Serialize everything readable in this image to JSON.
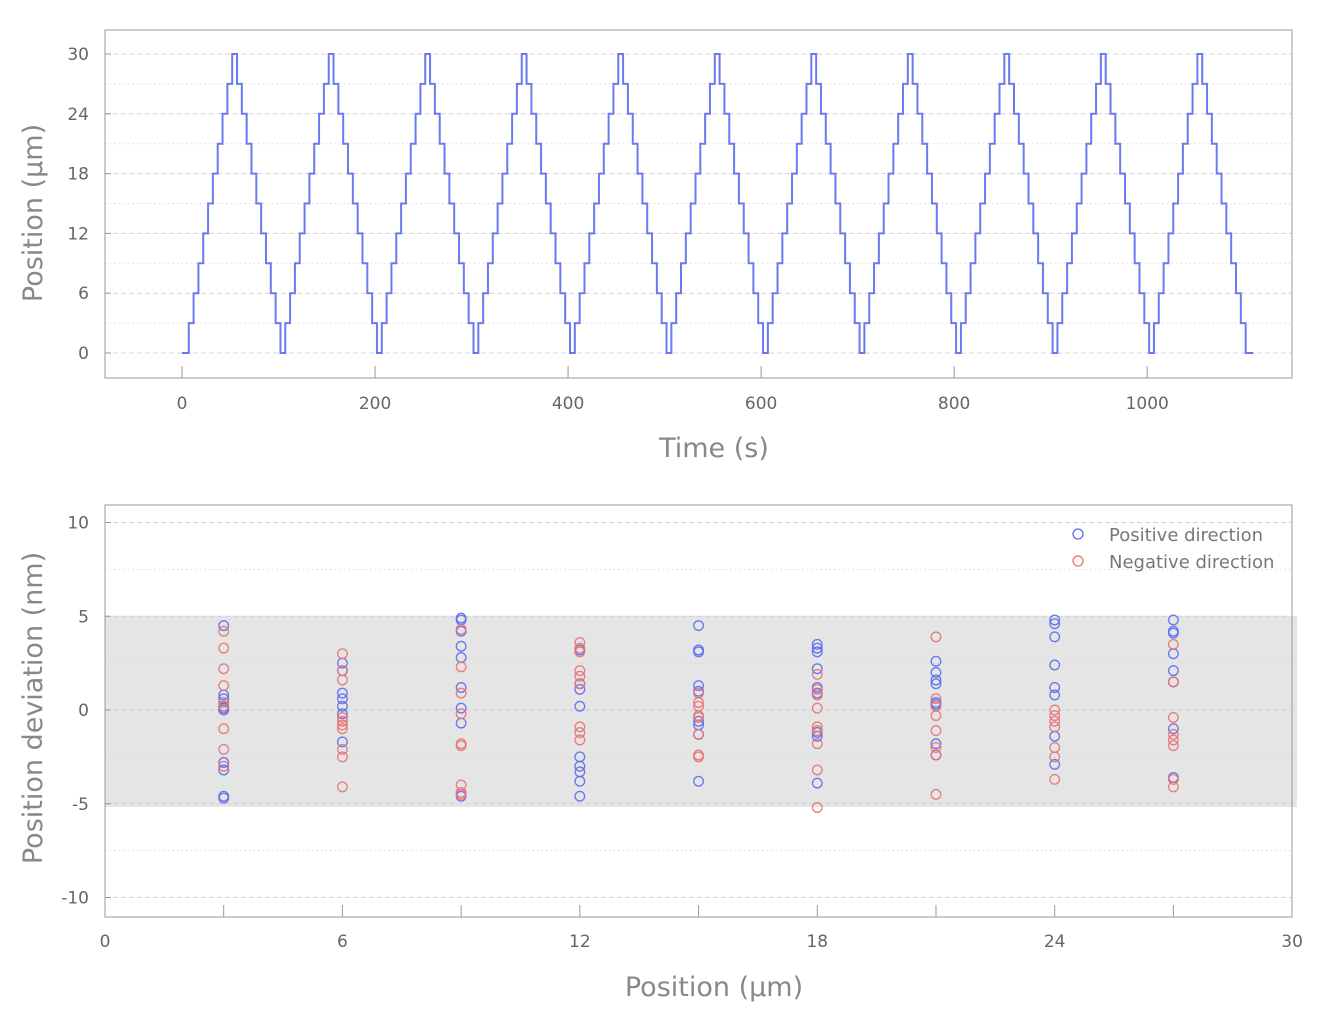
{
  "chart_data": [
    {
      "type": "line",
      "title": "",
      "xlabel": "Time (s)",
      "ylabel": "Position (µm)",
      "xlim": [
        -80,
        1150
      ],
      "ylim": [
        -8.5,
        32.5
      ],
      "xticks": [
        "0",
        "200",
        "400",
        "600",
        "800",
        "1000"
      ],
      "yticks": [
        "0",
        "6",
        "12",
        "18",
        "24",
        "30"
      ],
      "grid": true,
      "series": [
        {
          "name": "Position",
          "color": "#5a6cf0",
          "step_shape": "staircase triangle",
          "start_time": 0,
          "end_time": 1110,
          "first_step_time": 7,
          "step_duration_s": 5,
          "step_size_um": 3,
          "max_um": 30,
          "period_s": 100,
          "cycles": 11
        }
      ]
    },
    {
      "type": "scatter",
      "title": "",
      "xlabel": "Position (µm)",
      "ylabel": "Position deviation (nm)",
      "xlim": [
        0,
        30
      ],
      "ylim": [
        -11,
        10.9
      ],
      "xticks": [
        "0",
        "6",
        "12",
        "18",
        "24",
        "30"
      ],
      "yticks": [
        "10",
        "5",
        "0",
        "-5",
        "-10"
      ],
      "shaded_band": [
        -5,
        5
      ],
      "grid": true,
      "legend_position": "top-right",
      "series": [
        {
          "name": "Positive direction",
          "color": "#5a6cf0",
          "points": {
            "3": [
              4.5,
              0.8,
              0.6,
              0.2,
              0.1,
              0,
              -2.8,
              -3.2,
              -4.6,
              -4.7
            ],
            "6": [
              2.5,
              2.1,
              0.9,
              0.6,
              0.2,
              -0.2,
              -1.7
            ],
            "9": [
              4.9,
              4.8,
              4.2,
              3.4,
              2.8,
              1.2,
              0.1,
              -0.7,
              -4.6
            ],
            "12": [
              3.2,
              1.4,
              1.1,
              0.2,
              -2.5,
              -3.0,
              -3.3,
              -3.8,
              -4.6
            ],
            "15": [
              4.5,
              3.2,
              3.1,
              1.3,
              1.0,
              -0.6,
              -0.8,
              -1.3,
              -3.8
            ],
            "18": [
              3.5,
              3.3,
              3.1,
              2.2,
              1.2,
              0.9,
              -1.2,
              -1.4,
              -3.9
            ],
            "21": [
              2.6,
              2.0,
              1.6,
              1.4,
              0.4,
              0.3,
              -1.8,
              -2.4
            ],
            "24": [
              4.8,
              4.6,
              3.9,
              2.4,
              1.2,
              0.8,
              -1.4,
              -2.9
            ],
            "27": [
              4.8,
              4.2,
              4.1,
              3.0,
              2.1,
              1.5,
              -1.0,
              -3.6
            ]
          }
        },
        {
          "name": "Negative direction",
          "color": "#e87272",
          "points": {
            "3": [
              4.2,
              3.3,
              2.2,
              1.3,
              0.4,
              0.2,
              -1.0,
              -2.1,
              -3.0
            ],
            "6": [
              3.0,
              2.1,
              1.6,
              -0.4,
              -0.6,
              -0.8,
              -1.0,
              -2.1,
              -2.5,
              -4.1
            ],
            "9": [
              4.3,
              2.3,
              0.9,
              -0.2,
              -1.8,
              -1.9,
              -4.0,
              -4.4,
              -4.5
            ],
            "12": [
              3.6,
              3.3,
              3.1,
              2.1,
              1.8,
              1.4,
              -0.9,
              -1.2,
              -1.6
            ],
            "15": [
              0.9,
              0.4,
              0.2,
              -0.3,
              -0.4,
              -1.3,
              -2.4,
              -2.5
            ],
            "18": [
              1.9,
              1.1,
              0.8,
              0.1,
              -0.9,
              -1.1,
              -1.8,
              -3.2,
              -5.2
            ],
            "21": [
              3.9,
              0.6,
              0.2,
              -0.3,
              -1.1,
              -2.0,
              -2.4,
              -4.5
            ],
            "24": [
              0.0,
              -0.3,
              -0.6,
              -0.9,
              -2.0,
              -2.5,
              -3.7
            ],
            "27": [
              3.5,
              1.5,
              -0.4,
              -1.3,
              -1.6,
              -1.9,
              -3.7,
              -4.1
            ]
          }
        }
      ]
    }
  ]
}
